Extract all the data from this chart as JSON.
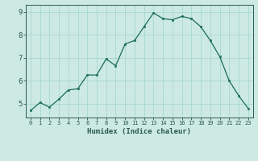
{
  "x": [
    0,
    1,
    2,
    3,
    4,
    5,
    6,
    7,
    8,
    9,
    10,
    11,
    12,
    13,
    14,
    15,
    16,
    17,
    18,
    19,
    20,
    21,
    22,
    23
  ],
  "y": [
    4.7,
    5.05,
    4.85,
    5.2,
    5.6,
    5.65,
    6.25,
    6.25,
    6.95,
    6.65,
    7.6,
    7.75,
    8.35,
    8.95,
    8.7,
    8.65,
    8.8,
    8.7,
    8.35,
    7.75,
    7.05,
    6.0,
    5.35,
    4.8
  ],
  "xlabel": "Humidex (Indice chaleur)",
  "ylabel": "",
  "bg_color": "#cce9e4",
  "line_color": "#1a6b5a",
  "marker_color": "#1a6b5a",
  "grid_color": "#a8d8d0",
  "axis_color": "#2a5a4a",
  "tick_label_color": "#2a5a4a",
  "xlim": [
    -0.5,
    23.5
  ],
  "ylim": [
    4.4,
    9.3
  ],
  "yticks": [
    5,
    6,
    7,
    8,
    9
  ],
  "xticks": [
    0,
    1,
    2,
    3,
    4,
    5,
    6,
    7,
    8,
    9,
    10,
    11,
    12,
    13,
    14,
    15,
    16,
    17,
    18,
    19,
    20,
    21,
    22,
    23
  ]
}
